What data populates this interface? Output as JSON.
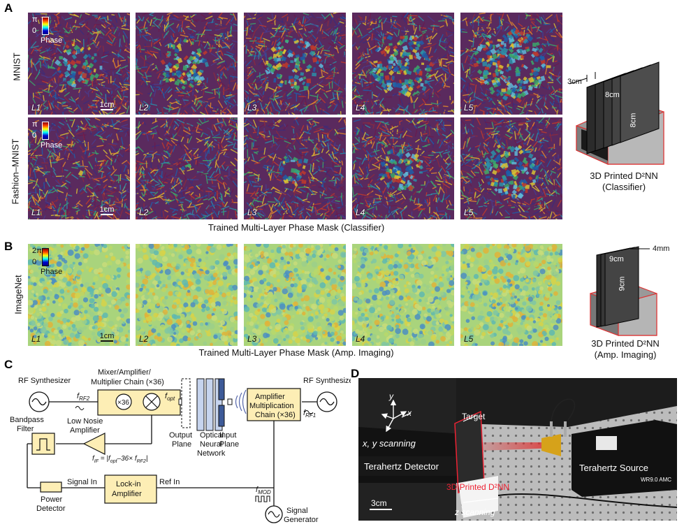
{
  "panels": {
    "A": "A",
    "B": "B",
    "C": "C",
    "D": "D"
  },
  "panel_a": {
    "row_labels": [
      "MNIST",
      "Fashion–MNIST"
    ],
    "layer_labels": [
      "L1",
      "L2",
      "L3",
      "L4",
      "L5"
    ],
    "colorbar": {
      "top": "π",
      "bottom": "0",
      "label": "Phase"
    },
    "scale": "1cm",
    "caption": "Trained Multi-Layer Phase Mask (Classifier)",
    "device": {
      "dims": [
        "3cm",
        "8cm",
        "8cm"
      ],
      "caption_line1": "3D Printed D²NN",
      "caption_line2": "(Classifier)"
    }
  },
  "panel_b": {
    "row_label": "ImageNet",
    "layer_labels": [
      "L1",
      "L2",
      "L3",
      "L4",
      "L5"
    ],
    "colorbar": {
      "top": "2π",
      "bottom": "0",
      "label": "Phase"
    },
    "scale": "1cm",
    "caption": "Trained Multi-Layer Phase Mask (Amp. Imaging)",
    "device": {
      "dims": [
        "4mm",
        "9cm",
        "9cm"
      ],
      "caption_line1": "3D Printed D²NN",
      "caption_line2": "(Amp. Imaging)"
    }
  },
  "panel_c": {
    "rf_synth_left": "RF Synthesizer",
    "rf_synth_right": "RF Synthesizer",
    "f_rf2": "f",
    "f_rf2_sub": "RF2",
    "f_rf1": "f",
    "f_rf1_sub": "RF1",
    "mixer_title_1": "Mixer/Amplifier/",
    "mixer_title_2": "Multiplier Chain (×36)",
    "x36": "×36",
    "f_opt": "f",
    "f_opt_sub": "opt",
    "output_plane_1": "Output",
    "output_plane_2": "Plane",
    "onn_1": "Optical",
    "onn_2": "Neural",
    "onn_3": "Network",
    "input_plane_1": "Input",
    "input_plane_2": "Plane",
    "amp_chain_1": "Amplifier",
    "amp_chain_2": "Multiplication",
    "amp_chain_3": "Chain (×36)",
    "bandpass_1": "Bandpass",
    "bandpass_2": "Filter",
    "lna_1": "Low Nosie",
    "lna_2": "Amplifier",
    "f_if_formula": "f",
    "f_if_sub": "IF",
    "f_if_rest": " = |f",
    "f_if_opt": "opt",
    "f_if_tail": "–36× f",
    "f_if_rf2": "RF2",
    "f_if_end": "|",
    "signal_in": "Signal In",
    "ref_in": "Ref In",
    "lockin_1": "Lock-in",
    "lockin_2": "Amplifier",
    "power_det_1": "Power",
    "power_det_2": "Detector",
    "f_mod": "f",
    "f_mod_sub": "MOD",
    "sig_gen_1": "Signal",
    "sig_gen_2": "Generator"
  },
  "panel_d": {
    "target": "Target",
    "axis_y": "y",
    "axis_x": "x",
    "xy_scanning": "x, y scanning",
    "detector": "Terahertz Detector",
    "printed": "3D Printed D²NN",
    "source": "Terahertz Source",
    "brand": "WR9.0 AMC",
    "scale": "3cm",
    "z_scanning": "z scanning"
  }
}
